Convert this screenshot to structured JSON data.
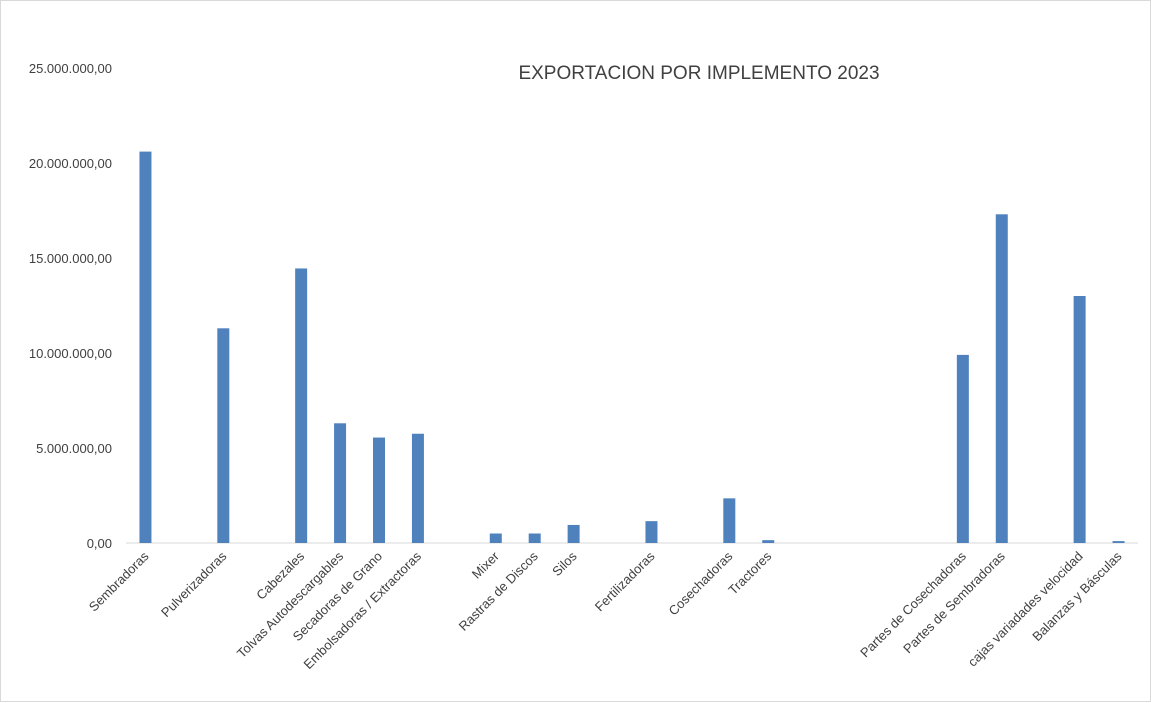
{
  "chart_data": {
    "type": "bar",
    "title": "EXPORTACION POR IMPLEMENTO 2023",
    "xlabel": "",
    "ylabel": "",
    "ylim": [
      0,
      25000000
    ],
    "yticks": [
      0,
      5000000,
      10000000,
      15000000,
      20000000,
      25000000
    ],
    "ytick_labels": [
      "0,00",
      "5.000.000,00",
      "10.000.000,00",
      "15.000.000,00",
      "20.000.000,00",
      "25.000.000,00"
    ],
    "grid": false,
    "legend": "none",
    "bar_color": "#4F81BD",
    "categories": [
      "Sembradoras",
      "",
      "Pulverizadoras",
      "",
      "Cabezales",
      "Tolvas Autodescargables",
      "Secadoras de Grano",
      "Embolsadoras / Extractoras",
      "",
      "Mixer",
      "Rastras de Discos",
      "Silos",
      "",
      "Fertilizadoras",
      "",
      "Cosechadoras",
      "Tractores",
      "",
      "",
      "",
      "",
      "Partes de Cosechadoras",
      "Partes de Sembradoras",
      "",
      "cajas variadades velocidad",
      "Balanzas y Básculas"
    ],
    "values": [
      20600000,
      null,
      11300000,
      null,
      14450000,
      6300000,
      5550000,
      5750000,
      null,
      500000,
      500000,
      950000,
      null,
      1150000,
      null,
      2350000,
      150000,
      null,
      null,
      null,
      null,
      9900000,
      17300000,
      null,
      13000000,
      100000
    ]
  }
}
